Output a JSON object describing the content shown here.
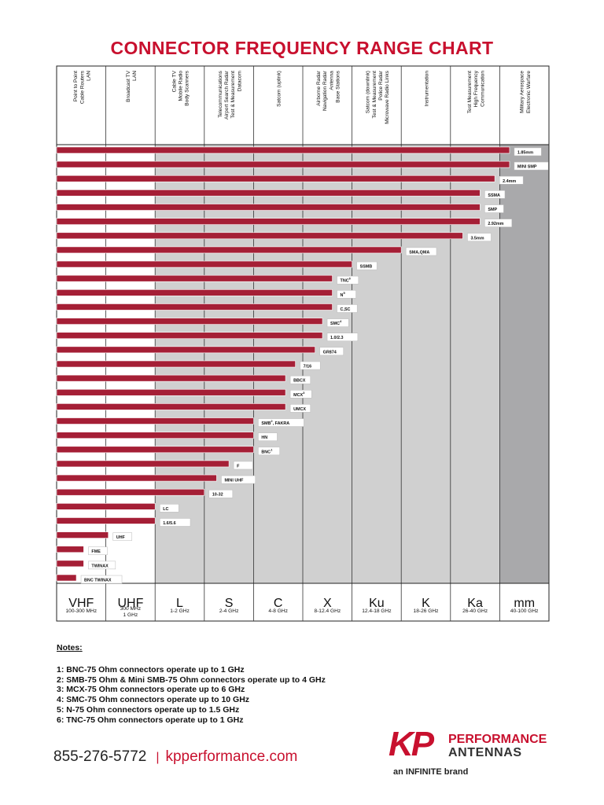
{
  "title": "CONNECTOR FREQUENCY RANGE CHART",
  "colors": {
    "accent": "#c8102e",
    "bar": "#a51f36",
    "band_light": "#e3e3e3",
    "band_mid": "#d0d0d0",
    "band_dark": "#a9a9ab"
  },
  "chart_data": {
    "type": "bar",
    "orientation": "horizontal",
    "x_scale": "ordinal-bands",
    "bands": [
      {
        "label": "VHF",
        "range": "100-300 MHz",
        "applications": [
          "Point to Point",
          "Cable Routers",
          "LAN"
        ]
      },
      {
        "label": "UHF",
        "range": "300 MHz\n1 GHz",
        "applications": [
          "Broadcast TV",
          "LAN"
        ]
      },
      {
        "label": "L",
        "range": "1-2 GHz",
        "applications": [
          "Cable TV",
          "Mobile Radio",
          "Body Scanners"
        ]
      },
      {
        "label": "S",
        "range": "2-4 GHz",
        "applications": [
          "Telecommunications",
          "Airport Search Radar",
          "Test & Measurement",
          "Datacom"
        ]
      },
      {
        "label": "C",
        "range": "4-8 GHz",
        "applications": [
          "Satcom (uplink)"
        ]
      },
      {
        "label": "X",
        "range": "8-12.4 GHz",
        "applications": [
          "Airborne Radar",
          "Navigation Radar",
          "Antenna",
          "Base Stations"
        ]
      },
      {
        "label": "Ku",
        "range": "12.4-18 GHz",
        "applications": [
          "Satcom (downlink)",
          "Test & Measurement",
          "Police Radar",
          "Microwave Radio Links"
        ]
      },
      {
        "label": "K",
        "range": "18-26 GHz",
        "applications": [
          "Instrumentation"
        ]
      },
      {
        "label": "Ka",
        "range": "26-40 GHz",
        "applications": [
          "Test Measurement",
          "High Frequency",
          "Communication"
        ]
      },
      {
        "label": "mm",
        "range": "40-100 GHz",
        "applications": [
          "Military Aerospace",
          "Electronic Warfare"
        ]
      }
    ],
    "connectors": [
      {
        "name": "1.85mm",
        "sup": "",
        "extent": 9.2
      },
      {
        "name": "MINI SMP",
        "sup": "",
        "extent": 9.2
      },
      {
        "name": "2.4mm",
        "sup": "",
        "extent": 8.9
      },
      {
        "name": "SSMA",
        "sup": "",
        "extent": 8.6
      },
      {
        "name": "SMP",
        "sup": "",
        "extent": 8.6
      },
      {
        "name": "2.92mm",
        "sup": "",
        "extent": 8.6
      },
      {
        "name": "3.5mm",
        "sup": "",
        "extent": 8.25
      },
      {
        "name": "SMA,QMA",
        "sup": "",
        "extent": 7.0
      },
      {
        "name": "SSMB",
        "sup": "",
        "extent": 6.0
      },
      {
        "name": "TNC",
        "sup": "6",
        "extent": 5.6
      },
      {
        "name": "N",
        "sup": "5",
        "extent": 5.6
      },
      {
        "name": "C,SC",
        "sup": "",
        "extent": 5.6
      },
      {
        "name": "SMC",
        "sup": "4",
        "extent": 5.4
      },
      {
        "name": "1.0/2.3",
        "sup": "",
        "extent": 5.4
      },
      {
        "name": "GR874",
        "sup": "",
        "extent": 5.25
      },
      {
        "name": "7/16",
        "sup": "",
        "extent": 4.85
      },
      {
        "name": "BBCX",
        "sup": "",
        "extent": 4.65
      },
      {
        "name": "MCX",
        "sup": "3",
        "extent": 4.65
      },
      {
        "name": "UMCX",
        "sup": "",
        "extent": 4.65
      },
      {
        "name": "SMB",
        "sup": "2",
        "name_suffix": ", FAKRA",
        "extent": 4.0
      },
      {
        "name": "HN",
        "sup": "",
        "extent": 4.0
      },
      {
        "name": "BNC",
        "sup": "1",
        "extent": 4.0
      },
      {
        "name": "F",
        "sup": "",
        "extent": 3.5
      },
      {
        "name": "MINI UHF",
        "sup": "",
        "extent": 3.25
      },
      {
        "name": "10-32",
        "sup": "",
        "extent": 3.0
      },
      {
        "name": "LC",
        "sup": "",
        "extent": 2.0
      },
      {
        "name": "1.6/5.6",
        "sup": "",
        "extent": 2.0
      },
      {
        "name": "UHF",
        "sup": "",
        "extent": 1.05
      },
      {
        "name": "FME",
        "sup": "",
        "extent": 0.55
      },
      {
        "name": "TWINAX",
        "sup": "",
        "extent": 0.55
      },
      {
        "name": "BNC TWINAX",
        "sup": "",
        "extent": 0.4
      }
    ]
  },
  "notes": {
    "heading": "Notes:",
    "lines": [
      "1:  BNC-75 Ohm connectors operate up to 1 GHz",
      "2:  SMB-75 Ohm & Mini SMB-75 Ohm connectors operate up to 4 GHz",
      "3:  MCX-75 Ohm connectors operate up to 6 GHz",
      "4:  SMC-75 Ohm connectors operate up to 10 GHz",
      "5:  N-75 Ohm connectors operate up to 1.5 GHz",
      "6:  TNC-75 Ohm connectors operate up to 1 GHz"
    ]
  },
  "footer": {
    "phone": "855-276-5772",
    "separator": "|",
    "website": "kpperformance.com",
    "logo_mark": "KP",
    "logo_line1": "PERFORMANCE",
    "logo_line2": "ANTENNAS",
    "logo_brand": "an INFINITE brand"
  }
}
